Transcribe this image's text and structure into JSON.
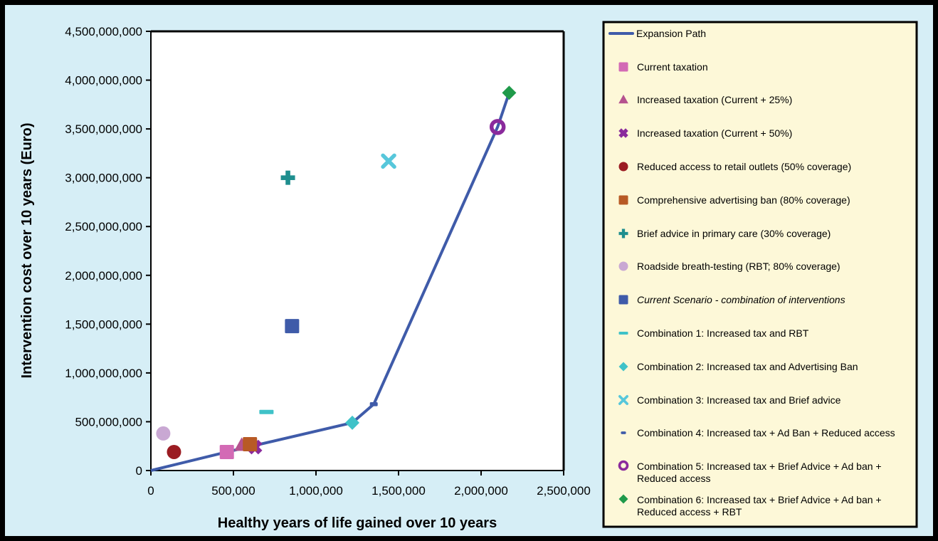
{
  "chart_data": {
    "type": "scatter",
    "title": "",
    "xlabel": "Healthy years of life gained over 10 years",
    "ylabel": "Intervention cost over 10 years (Euro)",
    "xlim": [
      0,
      2500000
    ],
    "ylim": [
      0,
      4500000000
    ],
    "x_ticks": [
      0,
      500000,
      1000000,
      1500000,
      2000000,
      2500000
    ],
    "x_tick_labels": [
      "0",
      "500,000",
      "1,000,000",
      "1,500,000",
      "2,000,000",
      "2,500,000"
    ],
    "y_ticks": [
      0,
      500000000,
      1000000000,
      1500000000,
      2000000000,
      2500000000,
      3000000000,
      3500000000,
      4000000000,
      4500000000
    ],
    "y_tick_labels": [
      "0",
      "500,000,000",
      "1,000,000,000",
      "1,500,000,000",
      "2,000,000,000",
      "2,500,000,000",
      "3,000,000,000",
      "3,500,000,000",
      "4,000,000,000",
      "4,500,000,000"
    ],
    "grid": false,
    "legend_position": "right",
    "series": [
      {
        "name": "Expansion Path",
        "kind": "line",
        "color": "#3f5ba9",
        "points": [
          [
            0,
            0
          ],
          [
            460000,
            190000000
          ],
          [
            1220000,
            490000000
          ],
          [
            1350000,
            680000000
          ],
          [
            2100000,
            3520000000
          ],
          [
            2170000,
            3870000000
          ]
        ]
      },
      {
        "name": "Current taxation",
        "kind": "point",
        "marker": "square",
        "color": "#d36ab5",
        "points": [
          [
            460000,
            190000000
          ]
        ]
      },
      {
        "name": "Increased taxation (Current + 25%)",
        "kind": "point",
        "marker": "triangle",
        "color": "#b5528f",
        "points": [
          [
            550000,
            260000000
          ]
        ]
      },
      {
        "name": "Increased taxation (Current + 50%)",
        "kind": "point",
        "marker": "x-thick",
        "color": "#8a2a9c",
        "points": [
          [
            630000,
            240000000
          ]
        ]
      },
      {
        "name": "Reduced access to retail outlets (50% coverage)",
        "kind": "point",
        "marker": "circle",
        "color": "#9b1c22",
        "points": [
          [
            140000,
            190000000
          ]
        ]
      },
      {
        "name": "Comprehensive advertising ban (80% coverage)",
        "kind": "point",
        "marker": "square",
        "color": "#b85a25",
        "points": [
          [
            600000,
            270000000
          ]
        ]
      },
      {
        "name": "Brief advice in primary care (30% coverage)",
        "kind": "point",
        "marker": "plus",
        "color": "#1e8e8e",
        "points": [
          [
            830000,
            3000000000
          ]
        ]
      },
      {
        "name": "Roadside breath-testing (RBT; 80% coverage)",
        "kind": "point",
        "marker": "circle",
        "color": "#c9a8d3",
        "points": [
          [
            75000,
            380000000
          ]
        ]
      },
      {
        "name": "Current Scenario - combination of interventions",
        "kind": "point",
        "marker": "square",
        "color": "#3f5ba9",
        "italic": true,
        "points": [
          [
            855000,
            1480000000
          ]
        ]
      },
      {
        "name": "Combination 1: Increased tax and RBT",
        "kind": "point",
        "marker": "dash",
        "color": "#3fc2c8",
        "points": [
          [
            700000,
            600000000
          ]
        ]
      },
      {
        "name": "Combination 2: Increased tax and Advertising Ban",
        "kind": "point",
        "marker": "diamond",
        "color": "#3fc2c8",
        "points": [
          [
            1220000,
            490000000
          ]
        ]
      },
      {
        "name": "Combination 3: Increased tax and Brief advice",
        "kind": "point",
        "marker": "x",
        "color": "#57c7db",
        "points": [
          [
            1440000,
            3170000000
          ]
        ]
      },
      {
        "name": "Combination 4: Increased tax + Ad Ban + Reduced access",
        "kind": "point",
        "marker": "small-dash",
        "color": "#3f5ba9",
        "points": [
          [
            1350000,
            680000000
          ]
        ]
      },
      {
        "name": "Combination 5: Increased tax + Brief Advice + Ad ban + Reduced access",
        "kind": "point",
        "marker": "ring",
        "color": "#8a2a9c",
        "points": [
          [
            2100000,
            3520000000
          ]
        ]
      },
      {
        "name": "Combination 6: Increased tax + Brief Advice + Ad ban + Reduced access + RBT",
        "kind": "point",
        "marker": "diamond",
        "color": "#1f9a4a",
        "points": [
          [
            2170000,
            3870000000
          ]
        ]
      }
    ]
  },
  "legend_lines": [
    [
      "Expansion Path"
    ],
    [
      "Current taxation"
    ],
    [
      "Increased taxation (Current + 25%)"
    ],
    [
      "Increased taxation (Current + 50%)"
    ],
    [
      "Reduced access to retail outlets (50% coverage)"
    ],
    [
      "Comprehensive advertising ban (80% coverage)"
    ],
    [
      "Brief advice in primary care (30% coverage)"
    ],
    [
      "Roadside breath-testing (RBT; 80% coverage)"
    ],
    [
      "Current Scenario - combination of interventions"
    ],
    [
      "Combination 1: Increased tax and RBT"
    ],
    [
      "Combination 2: Increased tax and Advertising Ban"
    ],
    [
      "Combination 3: Increased tax and Brief advice"
    ],
    [
      "Combination 4: Increased tax + Ad Ban + Reduced access"
    ],
    [
      "Combination 5: Increased tax + Brief Advice + Ad ban +",
      "Reduced access"
    ],
    [
      "Combination 6: Increased tax + Brief Advice + Ad ban +",
      "Reduced access + RBT"
    ]
  ],
  "colors": {
    "background": "#d6eef6",
    "plot_area": "#ffffff",
    "legend_box": "#fdf8d8",
    "frame": "#000000"
  }
}
